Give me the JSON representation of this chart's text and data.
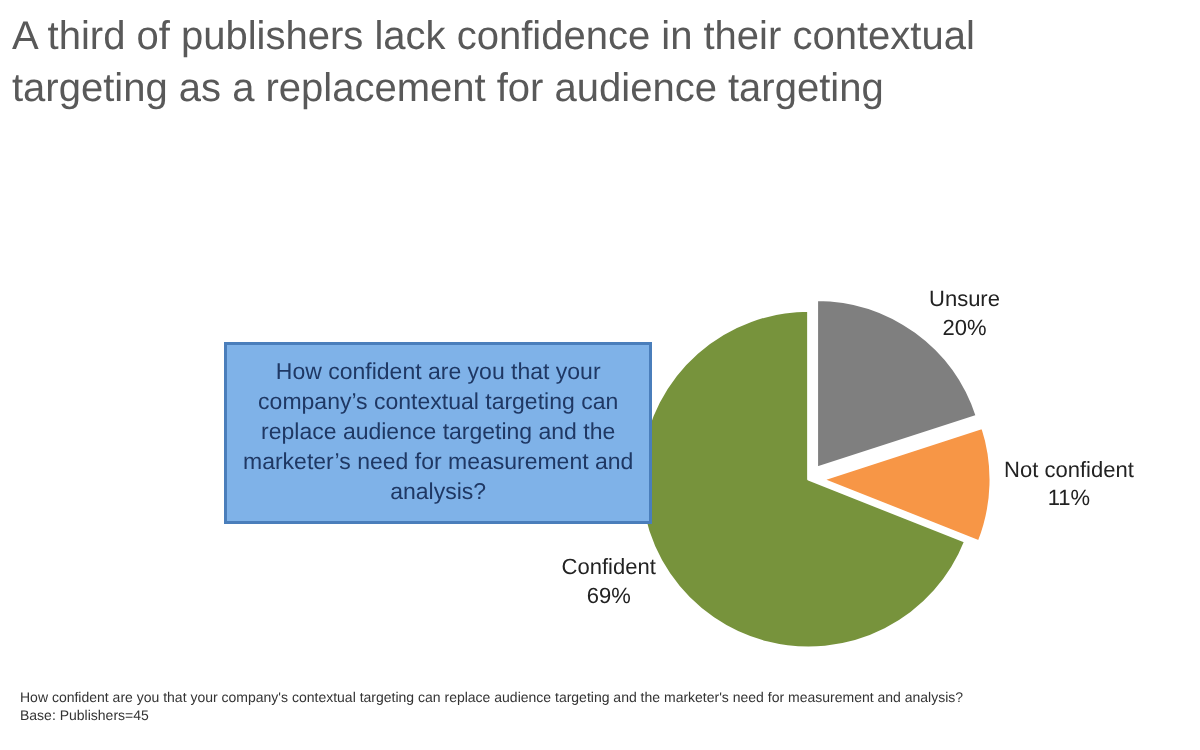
{
  "chart_data": {
    "type": "pie",
    "title": "A third of publishers lack confidence in their contextual targeting as a replacement for audience targeting",
    "categories": [
      "Unsure",
      "Not confident",
      "Confident"
    ],
    "values": [
      20,
      11,
      69
    ],
    "value_labels": [
      "20%",
      "11%",
      "69%"
    ],
    "colors": [
      "#7f7f7f",
      "#f79646",
      "#77933c"
    ],
    "legend": false,
    "annotations": [
      "How confident are you that your company’s contextual targeting can replace audience targeting and the marketer’s need for measurement and analysis?",
      "How confident are you that your company's contextual targeting can replace audience targeting and the marketer's need for measurement and analysis?",
      "Base: Publishers=45"
    ]
  }
}
